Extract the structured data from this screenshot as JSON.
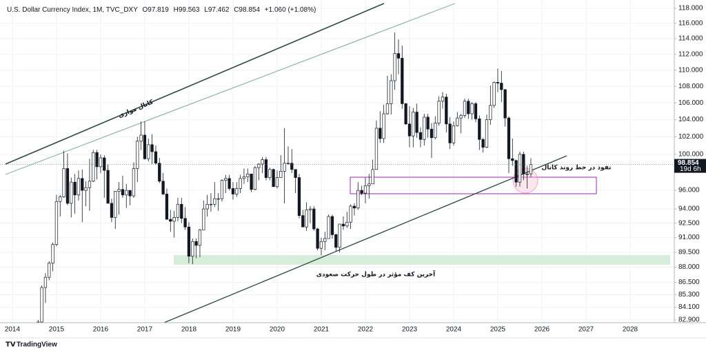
{
  "chart_data": {
    "type": "candlestick",
    "title": "U.S. Dollar Currency Index, 1M, TVC_DXY",
    "ohlc_labels": [
      "O",
      "H",
      "L",
      "C"
    ],
    "change": "+1.060 (+1.08%)",
    "countdown": "19d 6h",
    "branding": "TradingView",
    "log_scale": true,
    "annotations": {
      "channel": "کانال موازی",
      "breakout": "نفوذ در خط روند کانال",
      "last_low": "آخرین کف مؤثر در طول حرکت صعودی"
    },
    "ylim": [
      82.64,
      119.1
    ],
    "yticks": [
      {
        "value": 118,
        "label": "118.000"
      },
      {
        "value": 116,
        "label": "116.000"
      },
      {
        "value": 114,
        "label": "114.000"
      },
      {
        "value": 112,
        "label": "112.000"
      },
      {
        "value": 110,
        "label": "110.000"
      },
      {
        "value": 108,
        "label": "108.000"
      },
      {
        "value": 106,
        "label": "106.000"
      },
      {
        "value": 104,
        "label": "104.000"
      },
      {
        "value": 102,
        "label": "102.000"
      },
      {
        "value": 100,
        "label": "100.000"
      },
      {
        "value": 96,
        "label": "96.000"
      },
      {
        "value": 94,
        "label": "94.000"
      },
      {
        "value": 92.5,
        "label": "92.500"
      },
      {
        "value": 91,
        "label": "91.000"
      },
      {
        "value": 89.5,
        "label": "89.500"
      },
      {
        "value": 88,
        "label": "88.000"
      },
      {
        "value": 86.5,
        "label": "86.500"
      },
      {
        "value": 85.3,
        "label": "85.300"
      },
      {
        "value": 84.1,
        "label": "84.100"
      },
      {
        "value": 82.9,
        "label": "82.900"
      }
    ],
    "xlim": [
      2013.72,
      2029.0
    ],
    "xticks": [
      2014,
      2015,
      2016,
      2017,
      2018,
      2019,
      2020,
      2021,
      2022,
      2023,
      2024,
      2025,
      2026,
      2027,
      2028
    ],
    "candles": {
      "x": [
        "2014-08",
        "2014-09",
        "2014-10",
        "2014-11",
        "2014-12",
        "2015-01",
        "2015-02",
        "2015-03",
        "2015-04",
        "2015-05",
        "2015-06",
        "2015-07",
        "2015-08",
        "2015-09",
        "2015-10",
        "2015-11",
        "2015-12",
        "2016-01",
        "2016-02",
        "2016-03",
        "2016-04",
        "2016-05",
        "2016-06",
        "2016-07",
        "2016-08",
        "2016-09",
        "2016-10",
        "2016-11",
        "2016-12",
        "2017-01",
        "2017-02",
        "2017-03",
        "2017-04",
        "2017-05",
        "2017-06",
        "2017-07",
        "2017-08",
        "2017-09",
        "2017-10",
        "2017-11",
        "2017-12",
        "2018-01",
        "2018-02",
        "2018-03",
        "2018-04",
        "2018-05",
        "2018-06",
        "2018-07",
        "2018-08",
        "2018-09",
        "2018-10",
        "2018-11",
        "2018-12",
        "2019-01",
        "2019-02",
        "2019-03",
        "2019-04",
        "2019-05",
        "2019-06",
        "2019-07",
        "2019-08",
        "2019-09",
        "2019-10",
        "2019-11",
        "2019-12",
        "2020-01",
        "2020-02",
        "2020-03",
        "2020-04",
        "2020-05",
        "2020-06",
        "2020-07",
        "2020-08",
        "2020-09",
        "2020-10",
        "2020-11",
        "2020-12",
        "2021-01",
        "2021-02",
        "2021-03",
        "2021-04",
        "2021-05",
        "2021-06",
        "2021-07",
        "2021-08",
        "2021-09",
        "2021-10",
        "2021-11",
        "2021-12",
        "2022-01",
        "2022-02",
        "2022-03",
        "2022-04",
        "2022-05",
        "2022-06",
        "2022-07",
        "2022-08",
        "2022-09",
        "2022-10",
        "2022-11",
        "2022-12",
        "2023-01",
        "2023-02",
        "2023-03",
        "2023-04",
        "2023-05",
        "2023-06",
        "2023-07",
        "2023-08",
        "2023-09",
        "2023-10",
        "2023-11",
        "2023-12",
        "2024-01",
        "2024-02",
        "2024-03",
        "2024-04",
        "2024-05",
        "2024-06",
        "2024-07",
        "2024-08",
        "2024-09",
        "2024-10",
        "2024-11",
        "2024-12",
        "2025-01",
        "2025-02",
        "2025-03",
        "2025-04",
        "2025-05",
        "2025-06",
        "2025-07",
        "2025-08",
        "2025-09",
        "2025-10"
      ],
      "open": [
        81.5,
        82.7,
        86.0,
        87.0,
        88.4,
        90.3,
        94.8,
        95.3,
        98.4,
        94.6,
        96.9,
        95.5,
        97.3,
        96.0,
        96.3,
        97.0,
        100.2,
        98.6,
        99.6,
        98.2,
        94.6,
        93.1,
        95.9,
        96.1,
        95.5,
        96.0,
        95.4,
        98.4,
        101.5,
        102.2,
        99.5,
        101.1,
        100.3,
        99.0,
        97.0,
        95.6,
        92.9,
        92.7,
        93.1,
        94.5,
        93.0,
        92.1,
        89.1,
        90.6,
        90.2,
        91.8,
        94.0,
        94.5,
        94.5,
        95.1,
        95.1,
        97.1,
        97.3,
        96.2,
        95.6,
        96.2,
        97.3,
        97.5,
        97.8,
        96.1,
        98.5,
        98.9,
        99.4,
        97.4,
        98.3,
        96.4,
        97.4,
        98.1,
        99.0,
        99.0,
        98.3,
        97.4,
        93.3,
        92.1,
        93.9,
        94.0,
        91.9,
        89.9,
        90.6,
        90.9,
        93.2,
        91.3,
        90.0,
        92.4,
        92.2,
        92.6,
        94.3,
        94.1,
        96.0,
        95.7,
        96.5,
        96.7,
        98.3,
        103.0,
        101.8,
        104.7,
        105.9,
        108.7,
        112.1,
        111.5,
        105.9,
        103.5,
        102.1,
        104.9,
        102.5,
        101.7,
        104.3,
        102.9,
        101.9,
        103.6,
        106.2,
        106.7,
        103.5,
        101.3,
        103.3,
        104.2,
        104.5,
        106.2,
        104.7,
        105.9,
        104.1,
        101.7,
        100.8,
        104.0,
        105.7,
        108.5,
        108.4,
        107.6,
        104.2,
        99.5,
        99.3,
        96.9,
        100.0,
        97.8,
        97.819
      ],
      "high": [
        82.9,
        86.2,
        87.4,
        88.6,
        90.5,
        95.5,
        95.5,
        100.4,
        100.1,
        97.4,
        97.8,
        98.2,
        98.3,
        97.0,
        99.5,
        100.5,
        100.5,
        100.0,
        99.9,
        98.9,
        95.1,
        95.9,
        96.9,
        97.6,
        96.7,
        96.0,
        99.1,
        102.0,
        103.8,
        103.8,
        101.8,
        102.3,
        101.0,
        99.6,
        97.9,
        96.2,
        93.9,
        93.8,
        95.2,
        95.2,
        94.2,
        92.6,
        90.9,
        90.9,
        91.9,
        94.9,
        95.5,
        95.7,
        96.9,
        95.7,
        97.2,
        97.7,
        97.7,
        96.9,
        96.9,
        97.7,
        98.4,
        98.4,
        97.8,
        98.7,
        99.0,
        99.7,
        99.7,
        98.5,
        98.4,
        98.2,
        99.9,
        103.0,
        100.9,
        100.6,
        98.3,
        97.8,
        93.9,
        94.7,
        94.3,
        94.3,
        92.0,
        91.0,
        91.6,
        93.4,
        93.4,
        91.4,
        92.4,
        93.2,
        93.7,
        94.5,
        94.6,
        96.9,
        96.5,
        97.4,
        97.8,
        99.4,
        103.9,
        105.0,
        105.8,
        109.3,
        109.5,
        114.8,
        113.9,
        113.1,
        106.0,
        105.6,
        105.4,
        105.9,
        103.1,
        104.7,
        104.7,
        103.6,
        104.4,
        106.8,
        107.3,
        107.1,
        104.3,
        103.8,
        104.9,
        104.7,
        106.5,
        106.5,
        106.1,
        106.1,
        104.5,
        101.9,
        104.6,
        108.1,
        108.6,
        110.2,
        109.9,
        107.7,
        104.4,
        101.8,
        99.4,
        100.3,
        100.3,
        98.7,
        99.563
      ],
      "low": [
        81.2,
        82.6,
        84.5,
        86.7,
        87.6,
        90.1,
        93.2,
        95.2,
        94.4,
        93.1,
        93.5,
        94.9,
        92.6,
        94.3,
        93.8,
        96.9,
        97.2,
        97.9,
        95.2,
        94.6,
        92.6,
        91.9,
        93.4,
        95.2,
        94.1,
        94.4,
        95.2,
        96.9,
        100.5,
        99.4,
        99.2,
        98.9,
        98.8,
        96.8,
        95.5,
        92.9,
        91.6,
        91.0,
        92.7,
        92.5,
        91.8,
        88.4,
        88.3,
        88.9,
        89.0,
        91.8,
        93.2,
        93.7,
        94.2,
        93.8,
        94.8,
        95.7,
        96.0,
        95.0,
        95.3,
        95.7,
        96.7,
        96.9,
        95.8,
        96.0,
        97.1,
        97.9,
        97.1,
        97.1,
        96.4,
        96.2,
        97.4,
        94.6,
        98.8,
        97.9,
        95.7,
        93.0,
        92.1,
        91.7,
        92.5,
        91.7,
        89.7,
        89.2,
        89.7,
        90.9,
        90.9,
        89.6,
        89.5,
        91.8,
        92.0,
        91.9,
        93.3,
        93.9,
        95.5,
        94.6,
        95.1,
        97.0,
        98.3,
        101.3,
        101.3,
        104.6,
        104.6,
        107.6,
        109.5,
        105.3,
        103.4,
        100.8,
        100.8,
        101.9,
        100.8,
        101.0,
        101.9,
        99.6,
        101.7,
        103.3,
        105.3,
        102.5,
        100.6,
        101.0,
        103.2,
        102.4,
        104.2,
        104.1,
        104.0,
        103.7,
        100.5,
        100.2,
        100.7,
        103.4,
        105.4,
        107.3,
        106.1,
        103.2,
        97.9,
        98.7,
        96.4,
        96.4,
        97.1,
        96.2,
        97.462
      ],
      "close": [
        82.7,
        86.0,
        87.0,
        88.4,
        90.3,
        94.8,
        95.3,
        98.4,
        94.6,
        96.9,
        95.5,
        97.3,
        96.0,
        96.3,
        97.0,
        100.2,
        98.6,
        99.6,
        98.2,
        94.6,
        93.1,
        95.9,
        96.1,
        95.5,
        96.0,
        95.4,
        98.4,
        101.5,
        102.2,
        99.5,
        101.1,
        100.3,
        99.0,
        97.0,
        95.6,
        92.9,
        92.7,
        93.1,
        94.5,
        93.0,
        92.1,
        89.1,
        90.6,
        90.2,
        91.8,
        94.0,
        94.5,
        94.5,
        95.1,
        95.1,
        97.1,
        97.3,
        96.2,
        95.6,
        96.2,
        97.3,
        97.5,
        97.8,
        96.1,
        98.5,
        98.9,
        99.4,
        97.4,
        98.3,
        96.4,
        97.4,
        98.1,
        99.0,
        99.0,
        98.3,
        97.4,
        93.3,
        92.1,
        93.9,
        94.0,
        91.9,
        89.9,
        90.6,
        90.9,
        93.2,
        91.3,
        90.0,
        92.4,
        92.2,
        92.6,
        94.3,
        94.1,
        96.0,
        95.7,
        96.5,
        96.7,
        98.3,
        103.0,
        101.8,
        104.7,
        105.9,
        108.7,
        112.1,
        111.5,
        105.9,
        103.5,
        102.1,
        104.9,
        102.5,
        101.7,
        104.3,
        102.9,
        101.9,
        103.6,
        106.2,
        106.7,
        103.5,
        101.3,
        103.3,
        104.2,
        104.5,
        106.2,
        104.7,
        105.9,
        104.1,
        101.7,
        100.8,
        104.0,
        105.7,
        108.5,
        108.4,
        107.6,
        104.2,
        99.5,
        99.3,
        96.9,
        100.0,
        97.8,
        97.8,
        98.854
      ]
    }
  }
}
